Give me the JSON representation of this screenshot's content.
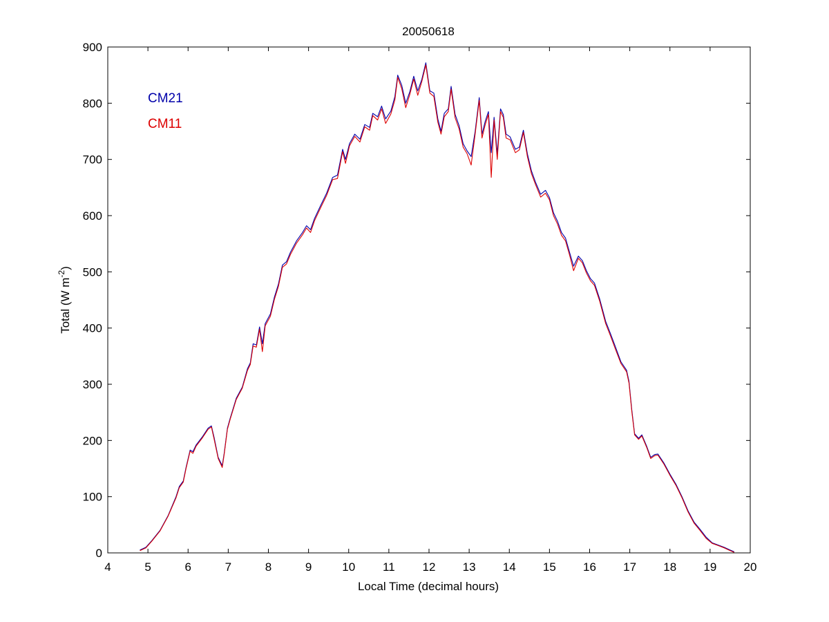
{
  "chart_data": {
    "type": "line",
    "title": "20050618",
    "xlabel": "Local Time (decimal hours)",
    "ylabel_base": "Total (W m",
    "ylabel_sup": "-2",
    "ylabel_tail": ")",
    "xlim": [
      4,
      20
    ],
    "ylim": [
      0,
      900
    ],
    "xticks": [
      4,
      5,
      6,
      7,
      8,
      9,
      10,
      11,
      12,
      13,
      14,
      15,
      16,
      17,
      18,
      19,
      20
    ],
    "yticks": [
      0,
      100,
      200,
      300,
      400,
      500,
      600,
      700,
      800,
      900
    ],
    "grid": false,
    "legend_position": "top-left",
    "series": [
      {
        "name": "CM21",
        "color": "#0000aa",
        "points": [
          [
            4.8,
            5
          ],
          [
            4.95,
            10
          ],
          [
            5.1,
            22
          ],
          [
            5.3,
            40
          ],
          [
            5.5,
            66
          ],
          [
            5.7,
            100
          ],
          [
            5.78,
            118
          ],
          [
            5.88,
            128
          ],
          [
            5.95,
            152
          ],
          [
            6.05,
            183
          ],
          [
            6.12,
            180
          ],
          [
            6.2,
            192
          ],
          [
            6.35,
            206
          ],
          [
            6.5,
            222
          ],
          [
            6.58,
            226
          ],
          [
            6.65,
            205
          ],
          [
            6.75,
            170
          ],
          [
            6.85,
            155
          ],
          [
            6.9,
            178
          ],
          [
            6.98,
            222
          ],
          [
            7.05,
            240
          ],
          [
            7.2,
            275
          ],
          [
            7.35,
            295
          ],
          [
            7.48,
            328
          ],
          [
            7.55,
            338
          ],
          [
            7.62,
            372
          ],
          [
            7.7,
            370
          ],
          [
            7.78,
            402
          ],
          [
            7.85,
            372
          ],
          [
            7.92,
            408
          ],
          [
            8.05,
            425
          ],
          [
            8.15,
            455
          ],
          [
            8.25,
            478
          ],
          [
            8.35,
            512
          ],
          [
            8.45,
            518
          ],
          [
            8.55,
            535
          ],
          [
            8.7,
            555
          ],
          [
            8.85,
            570
          ],
          [
            8.95,
            582
          ],
          [
            9.05,
            575
          ],
          [
            9.15,
            595
          ],
          [
            9.3,
            618
          ],
          [
            9.45,
            640
          ],
          [
            9.6,
            668
          ],
          [
            9.72,
            672
          ],
          [
            9.85,
            718
          ],
          [
            9.92,
            700
          ],
          [
            10.02,
            728
          ],
          [
            10.15,
            745
          ],
          [
            10.28,
            736
          ],
          [
            10.4,
            762
          ],
          [
            10.52,
            757
          ],
          [
            10.6,
            782
          ],
          [
            10.72,
            776
          ],
          [
            10.82,
            795
          ],
          [
            10.92,
            772
          ],
          [
            11.05,
            786
          ],
          [
            11.15,
            812
          ],
          [
            11.22,
            850
          ],
          [
            11.32,
            832
          ],
          [
            11.42,
            800
          ],
          [
            11.52,
            820
          ],
          [
            11.62,
            848
          ],
          [
            11.72,
            822
          ],
          [
            11.82,
            842
          ],
          [
            11.92,
            872
          ],
          [
            12.02,
            822
          ],
          [
            12.12,
            818
          ],
          [
            12.22,
            772
          ],
          [
            12.3,
            750
          ],
          [
            12.38,
            782
          ],
          [
            12.48,
            790
          ],
          [
            12.55,
            830
          ],
          [
            12.65,
            780
          ],
          [
            12.75,
            760
          ],
          [
            12.85,
            728
          ],
          [
            12.95,
            715
          ],
          [
            13.05,
            705
          ],
          [
            13.15,
            750
          ],
          [
            13.25,
            810
          ],
          [
            13.32,
            745
          ],
          [
            13.4,
            768
          ],
          [
            13.48,
            785
          ],
          [
            13.55,
            712
          ],
          [
            13.62,
            775
          ],
          [
            13.7,
            710
          ],
          [
            13.78,
            790
          ],
          [
            13.85,
            780
          ],
          [
            13.92,
            745
          ],
          [
            14.02,
            740
          ],
          [
            14.15,
            718
          ],
          [
            14.25,
            722
          ],
          [
            14.35,
            752
          ],
          [
            14.45,
            710
          ],
          [
            14.55,
            680
          ],
          [
            14.65,
            660
          ],
          [
            14.78,
            638
          ],
          [
            14.9,
            645
          ],
          [
            15.0,
            632
          ],
          [
            15.1,
            605
          ],
          [
            15.2,
            590
          ],
          [
            15.3,
            570
          ],
          [
            15.4,
            560
          ],
          [
            15.5,
            535
          ],
          [
            15.6,
            510
          ],
          [
            15.72,
            528
          ],
          [
            15.82,
            520
          ],
          [
            15.92,
            502
          ],
          [
            16.02,
            488
          ],
          [
            16.12,
            480
          ],
          [
            16.25,
            452
          ],
          [
            16.4,
            412
          ],
          [
            16.52,
            390
          ],
          [
            16.65,
            365
          ],
          [
            16.78,
            340
          ],
          [
            16.92,
            325
          ],
          [
            16.98,
            305
          ],
          [
            17.05,
            255
          ],
          [
            17.12,
            212
          ],
          [
            17.22,
            204
          ],
          [
            17.3,
            210
          ],
          [
            17.42,
            190
          ],
          [
            17.52,
            170
          ],
          [
            17.62,
            175
          ],
          [
            17.7,
            176
          ],
          [
            17.85,
            160
          ],
          [
            18.0,
            140
          ],
          [
            18.15,
            122
          ],
          [
            18.3,
            100
          ],
          [
            18.45,
            75
          ],
          [
            18.6,
            55
          ],
          [
            18.75,
            42
          ],
          [
            18.9,
            28
          ],
          [
            19.05,
            18
          ],
          [
            19.2,
            14
          ],
          [
            19.35,
            10
          ],
          [
            19.5,
            5
          ],
          [
            19.6,
            2
          ]
        ]
      },
      {
        "name": "CM11",
        "color": "#dd0000",
        "points": [
          [
            4.8,
            4
          ],
          [
            4.95,
            9
          ],
          [
            5.1,
            21
          ],
          [
            5.3,
            39
          ],
          [
            5.5,
            65
          ],
          [
            5.7,
            98
          ],
          [
            5.78,
            116
          ],
          [
            5.88,
            126
          ],
          [
            5.95,
            150
          ],
          [
            6.05,
            181
          ],
          [
            6.12,
            177
          ],
          [
            6.2,
            190
          ],
          [
            6.35,
            204
          ],
          [
            6.5,
            220
          ],
          [
            6.58,
            224
          ],
          [
            6.65,
            202
          ],
          [
            6.75,
            168
          ],
          [
            6.85,
            152
          ],
          [
            6.9,
            176
          ],
          [
            6.98,
            220
          ],
          [
            7.05,
            238
          ],
          [
            7.2,
            273
          ],
          [
            7.35,
            293
          ],
          [
            7.48,
            325
          ],
          [
            7.55,
            335
          ],
          [
            7.62,
            368
          ],
          [
            7.7,
            366
          ],
          [
            7.78,
            398
          ],
          [
            7.85,
            358
          ],
          [
            7.92,
            404
          ],
          [
            8.05,
            421
          ],
          [
            8.15,
            451
          ],
          [
            8.25,
            474
          ],
          [
            8.35,
            508
          ],
          [
            8.45,
            514
          ],
          [
            8.55,
            531
          ],
          [
            8.7,
            551
          ],
          [
            8.85,
            566
          ],
          [
            8.95,
            578
          ],
          [
            9.05,
            570
          ],
          [
            9.15,
            591
          ],
          [
            9.3,
            614
          ],
          [
            9.45,
            636
          ],
          [
            9.6,
            664
          ],
          [
            9.72,
            666
          ],
          [
            9.85,
            714
          ],
          [
            9.92,
            693
          ],
          [
            10.02,
            724
          ],
          [
            10.15,
            741
          ],
          [
            10.28,
            731
          ],
          [
            10.4,
            758
          ],
          [
            10.52,
            752
          ],
          [
            10.6,
            778
          ],
          [
            10.72,
            770
          ],
          [
            10.82,
            790
          ],
          [
            10.92,
            764
          ],
          [
            11.05,
            781
          ],
          [
            11.15,
            806
          ],
          [
            11.22,
            846
          ],
          [
            11.32,
            826
          ],
          [
            11.42,
            792
          ],
          [
            11.52,
            815
          ],
          [
            11.62,
            843
          ],
          [
            11.72,
            814
          ],
          [
            11.82,
            838
          ],
          [
            11.92,
            868
          ],
          [
            12.02,
            818
          ],
          [
            12.12,
            812
          ],
          [
            12.22,
            766
          ],
          [
            12.3,
            745
          ],
          [
            12.38,
            776
          ],
          [
            12.48,
            785
          ],
          [
            12.55,
            825
          ],
          [
            12.65,
            774
          ],
          [
            12.75,
            754
          ],
          [
            12.85,
            722
          ],
          [
            12.95,
            710
          ],
          [
            13.05,
            690
          ],
          [
            13.15,
            745
          ],
          [
            13.25,
            805
          ],
          [
            13.32,
            738
          ],
          [
            13.4,
            762
          ],
          [
            13.48,
            780
          ],
          [
            13.55,
            668
          ],
          [
            13.62,
            770
          ],
          [
            13.7,
            700
          ],
          [
            13.78,
            785
          ],
          [
            13.85,
            775
          ],
          [
            13.92,
            738
          ],
          [
            14.02,
            735
          ],
          [
            14.15,
            712
          ],
          [
            14.25,
            717
          ],
          [
            14.35,
            748
          ],
          [
            14.45,
            705
          ],
          [
            14.55,
            675
          ],
          [
            14.65,
            656
          ],
          [
            14.78,
            633
          ],
          [
            14.9,
            640
          ],
          [
            15.0,
            628
          ],
          [
            15.1,
            600
          ],
          [
            15.2,
            585
          ],
          [
            15.3,
            565
          ],
          [
            15.4,
            555
          ],
          [
            15.5,
            530
          ],
          [
            15.6,
            502
          ],
          [
            15.72,
            524
          ],
          [
            15.82,
            516
          ],
          [
            15.92,
            498
          ],
          [
            16.02,
            484
          ],
          [
            16.12,
            476
          ],
          [
            16.25,
            448
          ],
          [
            16.4,
            408
          ],
          [
            16.52,
            386
          ],
          [
            16.65,
            361
          ],
          [
            16.78,
            337
          ],
          [
            16.92,
            322
          ],
          [
            16.98,
            302
          ],
          [
            17.05,
            252
          ],
          [
            17.12,
            210
          ],
          [
            17.22,
            202
          ],
          [
            17.3,
            208
          ],
          [
            17.42,
            188
          ],
          [
            17.52,
            168
          ],
          [
            17.62,
            173
          ],
          [
            17.7,
            174
          ],
          [
            17.85,
            158
          ],
          [
            18.0,
            138
          ],
          [
            18.15,
            120
          ],
          [
            18.3,
            98
          ],
          [
            18.45,
            73
          ],
          [
            18.6,
            53
          ],
          [
            18.75,
            40
          ],
          [
            18.9,
            26
          ],
          [
            19.05,
            17
          ],
          [
            19.2,
            13
          ],
          [
            19.35,
            9
          ],
          [
            19.5,
            4
          ],
          [
            19.6,
            1
          ]
        ]
      }
    ]
  }
}
